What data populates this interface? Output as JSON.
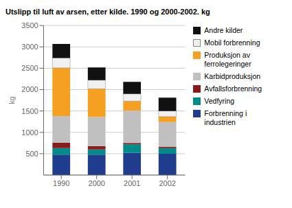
{
  "chart_data": {
    "type": "bar",
    "stacked": true,
    "title": "Utslipp til luft av arsen, etter kilde. 1990 og 2000-2002. kg",
    "y_label": "kg",
    "categories": [
      "1990",
      "2000",
      "2001",
      "2002"
    ],
    "series": [
      {
        "name": "Forbrenning i\nindustrien",
        "color": "#1f3d8c",
        "values": [
          480,
          480,
          520,
          500
        ]
      },
      {
        "name": "Vedfyring",
        "color": "#008b8b",
        "values": [
          150,
          120,
          200,
          130
        ]
      },
      {
        "name": "Avfallsforbrenning",
        "color": "#8b1a1a",
        "values": [
          130,
          80,
          30,
          30
        ]
      },
      {
        "name": "Karbidproduksjon",
        "color": "#c0c0c0",
        "values": [
          620,
          680,
          760,
          580
        ]
      },
      {
        "name": "Produksjon av\nferrolegeringer",
        "color": "#f5a020",
        "values": [
          1130,
          660,
          220,
          130
        ]
      },
      {
        "name": "Mobil forbrenning",
        "color": "#f0f0f0",
        "values": [
          230,
          200,
          170,
          130
        ]
      },
      {
        "name": "Andre kilder",
        "color": "#111111",
        "values": [
          330,
          300,
          280,
          310
        ]
      }
    ],
    "ylim": [
      0,
      3500
    ],
    "yticks": [
      500,
      1000,
      1500,
      2000,
      2500,
      3000,
      3500
    ],
    "grid": true,
    "legend": "right"
  }
}
